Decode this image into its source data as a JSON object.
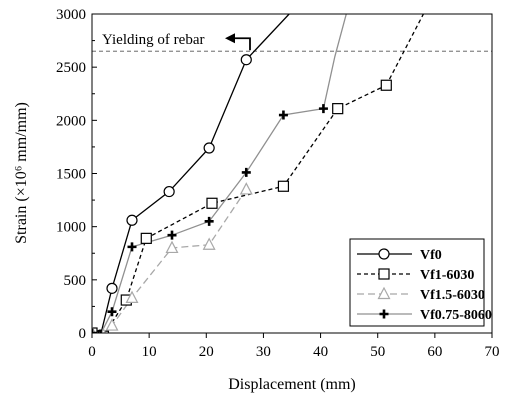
{
  "chart_data": {
    "type": "line",
    "xlabel": "Displacement (mm)",
    "ylabel": "Strain (×10⁶ mm/mm)",
    "xlim": [
      0,
      70
    ],
    "ylim": [
      0,
      3000
    ],
    "xticks": [
      0,
      10,
      20,
      30,
      40,
      50,
      60,
      70
    ],
    "yticks": [
      0,
      500,
      1000,
      1500,
      2000,
      2500,
      3000
    ],
    "grid": false,
    "legend_position": "bottom-right",
    "reference_line": {
      "y": 2650,
      "label": "Yielding of rebar",
      "style": "dashed",
      "arrow": "left"
    },
    "series": [
      {
        "name": "Vf0",
        "color": "#000000",
        "line": "solid",
        "marker": "circle",
        "points": [
          [
            0,
            0
          ],
          [
            1.5,
            -20
          ],
          [
            3.5,
            420
          ],
          [
            7,
            1060
          ],
          [
            13.5,
            1330
          ],
          [
            20.5,
            1740
          ],
          [
            27,
            2570
          ]
        ],
        "trail": [
          [
            27,
            2570
          ],
          [
            34.5,
            3000
          ]
        ]
      },
      {
        "name": "Vf1-6030",
        "color": "#000000",
        "line": "dashed",
        "marker": "square",
        "points": [
          [
            0,
            0
          ],
          [
            2,
            -30
          ],
          [
            6,
            310
          ],
          [
            9.5,
            890
          ],
          [
            21,
            1220
          ],
          [
            33.5,
            1380
          ],
          [
            43,
            2110
          ],
          [
            51.5,
            2330
          ]
        ],
        "trail": [
          [
            51.5,
            2330
          ],
          [
            58,
            3000
          ]
        ]
      },
      {
        "name": "Vf1.5-6030",
        "color": "#a8a8a8",
        "line": "dashed",
        "marker": "triangle",
        "points": [
          [
            0,
            0
          ],
          [
            2,
            -20
          ],
          [
            3.5,
            70
          ],
          [
            7,
            330
          ],
          [
            14,
            800
          ],
          [
            20.5,
            830
          ],
          [
            27,
            1350
          ]
        ],
        "trail": []
      },
      {
        "name": "Vf0.75-8060",
        "color": "#909090",
        "line": "solid",
        "marker": "cross",
        "points": [
          [
            0,
            0
          ],
          [
            1.5,
            -10
          ],
          [
            3.5,
            200
          ],
          [
            7,
            810
          ],
          [
            14,
            920
          ],
          [
            20.5,
            1050
          ],
          [
            27,
            1510
          ],
          [
            33.5,
            2050
          ],
          [
            40.5,
            2110
          ]
        ],
        "trail": [
          [
            40.5,
            2110
          ],
          [
            42.5,
            2600
          ],
          [
            44.5,
            3000
          ]
        ]
      }
    ]
  }
}
